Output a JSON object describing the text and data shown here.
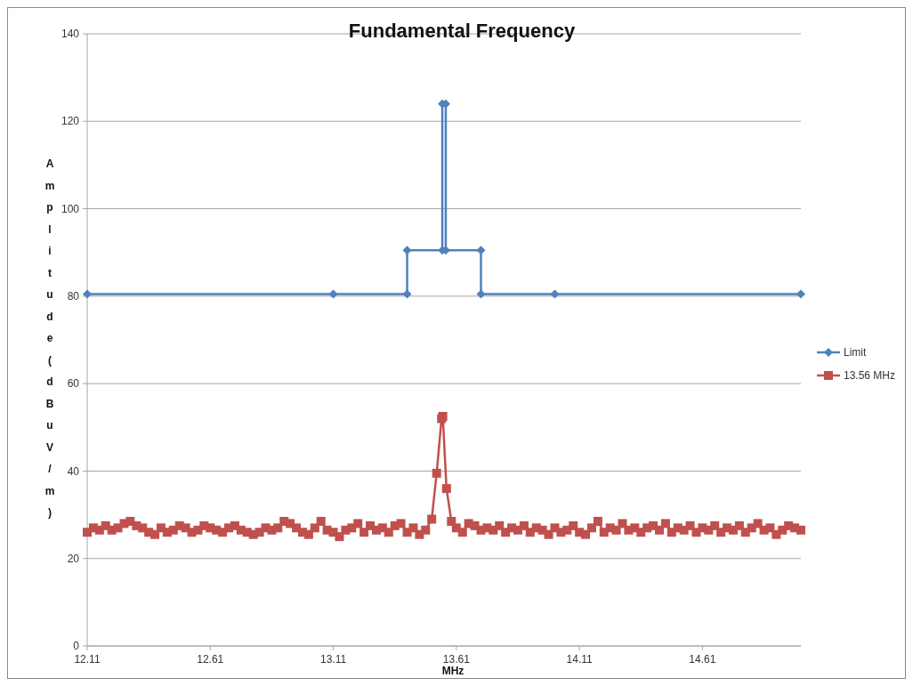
{
  "chart_data": {
    "type": "line",
    "title": "Fundamental Frequency",
    "xlabel": "MHz",
    "ylabel": "Amplitude (dBuV/m)",
    "xlim": [
      12.11,
      15.01
    ],
    "xticks": [
      12.11,
      12.61,
      13.11,
      13.61,
      14.11,
      14.61
    ],
    "ylim": [
      0,
      140
    ],
    "yticks": [
      0,
      20,
      40,
      60,
      80,
      100,
      120,
      140
    ],
    "grid": "y",
    "legend": "right",
    "line_style": "solid",
    "series": [
      {
        "name": "Limit",
        "color": "#4f81bd",
        "marker": "diamond",
        "x": [
          12.11,
          13.11,
          13.41,
          13.41,
          13.553,
          13.553,
          13.567,
          13.567,
          13.71,
          13.71,
          14.01,
          15.01
        ],
        "values": [
          80.5,
          80.5,
          80.5,
          90.5,
          90.5,
          124,
          124,
          90.5,
          90.5,
          80.5,
          80.5,
          80.5
        ]
      },
      {
        "name": "13.56 MHz",
        "color": "#c0504d",
        "marker": "square",
        "x": [
          12.11,
          12.135,
          12.16,
          12.185,
          12.21,
          12.235,
          12.26,
          12.285,
          12.31,
          12.335,
          12.36,
          12.385,
          12.41,
          12.435,
          12.46,
          12.485,
          12.51,
          12.535,
          12.56,
          12.585,
          12.61,
          12.635,
          12.66,
          12.685,
          12.71,
          12.735,
          12.76,
          12.785,
          12.81,
          12.835,
          12.86,
          12.885,
          12.91,
          12.935,
          12.96,
          12.985,
          13.01,
          13.035,
          13.06,
          13.085,
          13.11,
          13.135,
          13.16,
          13.185,
          13.21,
          13.235,
          13.26,
          13.285,
          13.31,
          13.335,
          13.36,
          13.385,
          13.41,
          13.435,
          13.46,
          13.485,
          13.51,
          13.53,
          13.55,
          13.555,
          13.57,
          13.59,
          13.61,
          13.635,
          13.66,
          13.685,
          13.71,
          13.735,
          13.76,
          13.785,
          13.81,
          13.835,
          13.86,
          13.885,
          13.91,
          13.935,
          13.96,
          13.985,
          14.01,
          14.035,
          14.06,
          14.085,
          14.11,
          14.135,
          14.16,
          14.185,
          14.21,
          14.235,
          14.26,
          14.285,
          14.31,
          14.335,
          14.36,
          14.385,
          14.41,
          14.435,
          14.46,
          14.485,
          14.51,
          14.535,
          14.56,
          14.585,
          14.61,
          14.635,
          14.66,
          14.685,
          14.71,
          14.735,
          14.76,
          14.785,
          14.81,
          14.835,
          14.86,
          14.885,
          14.91,
          14.935,
          14.96,
          14.985,
          15.01
        ],
        "values": [
          26,
          27,
          26.5,
          27.5,
          26.5,
          27,
          28,
          28.5,
          27.5,
          27,
          26,
          25.5,
          27,
          26,
          26.5,
          27.5,
          27,
          26,
          26.5,
          27.5,
          27,
          26.5,
          26,
          27,
          27.5,
          26.5,
          26,
          25.5,
          26,
          27,
          26.5,
          27,
          28.5,
          28,
          27,
          26,
          25.5,
          27,
          28.5,
          26.5,
          26,
          25,
          26.5,
          27,
          28,
          26,
          27.5,
          26.5,
          27,
          26,
          27.5,
          28,
          26,
          27,
          25.5,
          26.5,
          29,
          39.5,
          52,
          52.5,
          36,
          28.5,
          27,
          26,
          28,
          27.5,
          26.5,
          27,
          26.5,
          27.5,
          26,
          27,
          26.5,
          27.5,
          26,
          27,
          26.5,
          25.5,
          27,
          26,
          26.5,
          27.5,
          26,
          25.5,
          27,
          28.5,
          26,
          27,
          26.5,
          28,
          26.5,
          27,
          26,
          27,
          27.5,
          26.5,
          28,
          26,
          27,
          26.5,
          27.5,
          26,
          27,
          26.5,
          27.5,
          26,
          27,
          26.5,
          27.5,
          26,
          27,
          28,
          26.5,
          27,
          25.5,
          26.5,
          27.5,
          27,
          26.5
        ]
      }
    ]
  }
}
